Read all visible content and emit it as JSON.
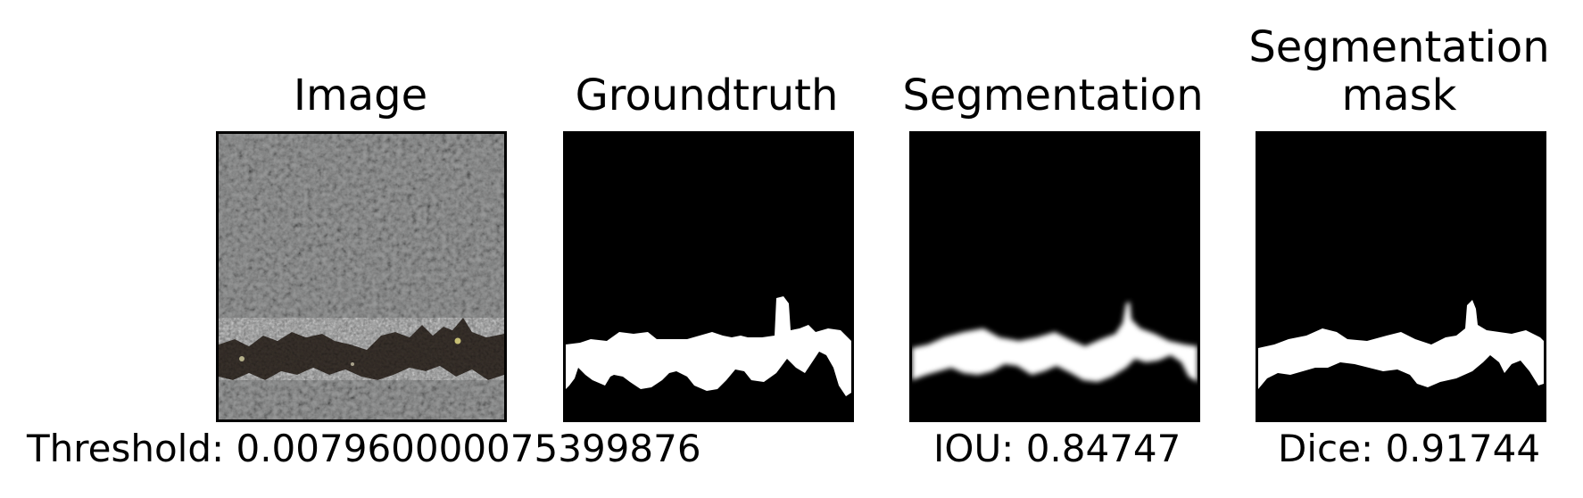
{
  "panels": [
    {
      "title": "Image"
    },
    {
      "title": "Groundtruth"
    },
    {
      "title": "Segmentation"
    },
    {
      "title": "Segmentation\nmask"
    }
  ],
  "captions": {
    "threshold": "Threshold: 0.007960000075399876",
    "iou": "IOU: 0.84747",
    "dice": "Dice: 0.91744"
  },
  "colors": {
    "background": "#ffffff",
    "mask_background": "#000000",
    "mask_foreground": "#ffffff",
    "asphalt": "#7f8080",
    "crack": "#2e2823"
  }
}
